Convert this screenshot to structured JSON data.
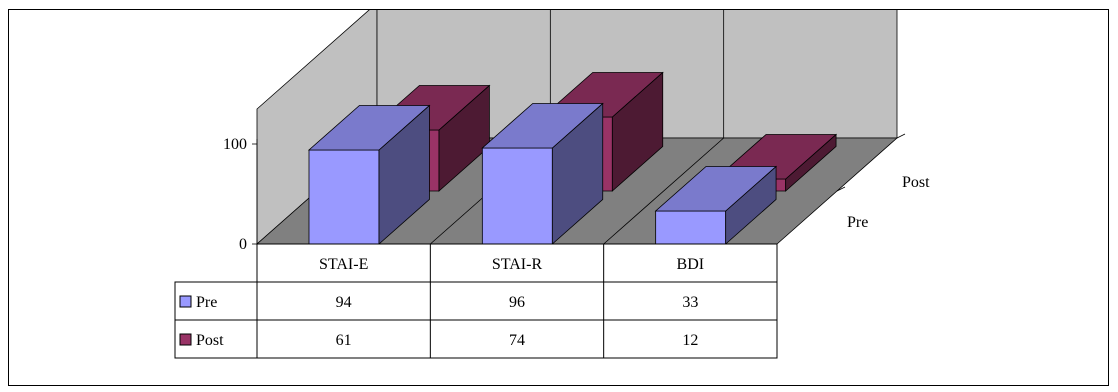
{
  "chart_data": {
    "type": "bar",
    "subtype": "3d-clustered-column-with-data-table",
    "categories": [
      "STAI-E",
      "STAI-R",
      "BDI"
    ],
    "series": [
      {
        "name": "Pre",
        "values": [
          94,
          96,
          33
        ],
        "color": "#9999ff",
        "side_color": "#4d4d80",
        "top_color": "#7a7acc"
      },
      {
        "name": "Post",
        "values": [
          61,
          74,
          12
        ],
        "color": "#993366",
        "side_color": "#4d1a33",
        "top_color": "#7a2952"
      }
    ],
    "y_tick_labels": [
      "0",
      "100"
    ],
    "ylim": [
      0,
      110
    ],
    "depth_axis_labels": [
      "Pre",
      "Post"
    ],
    "walls_color": "#c0c0c0",
    "floor_color": "#808080",
    "legend": "data-table"
  }
}
